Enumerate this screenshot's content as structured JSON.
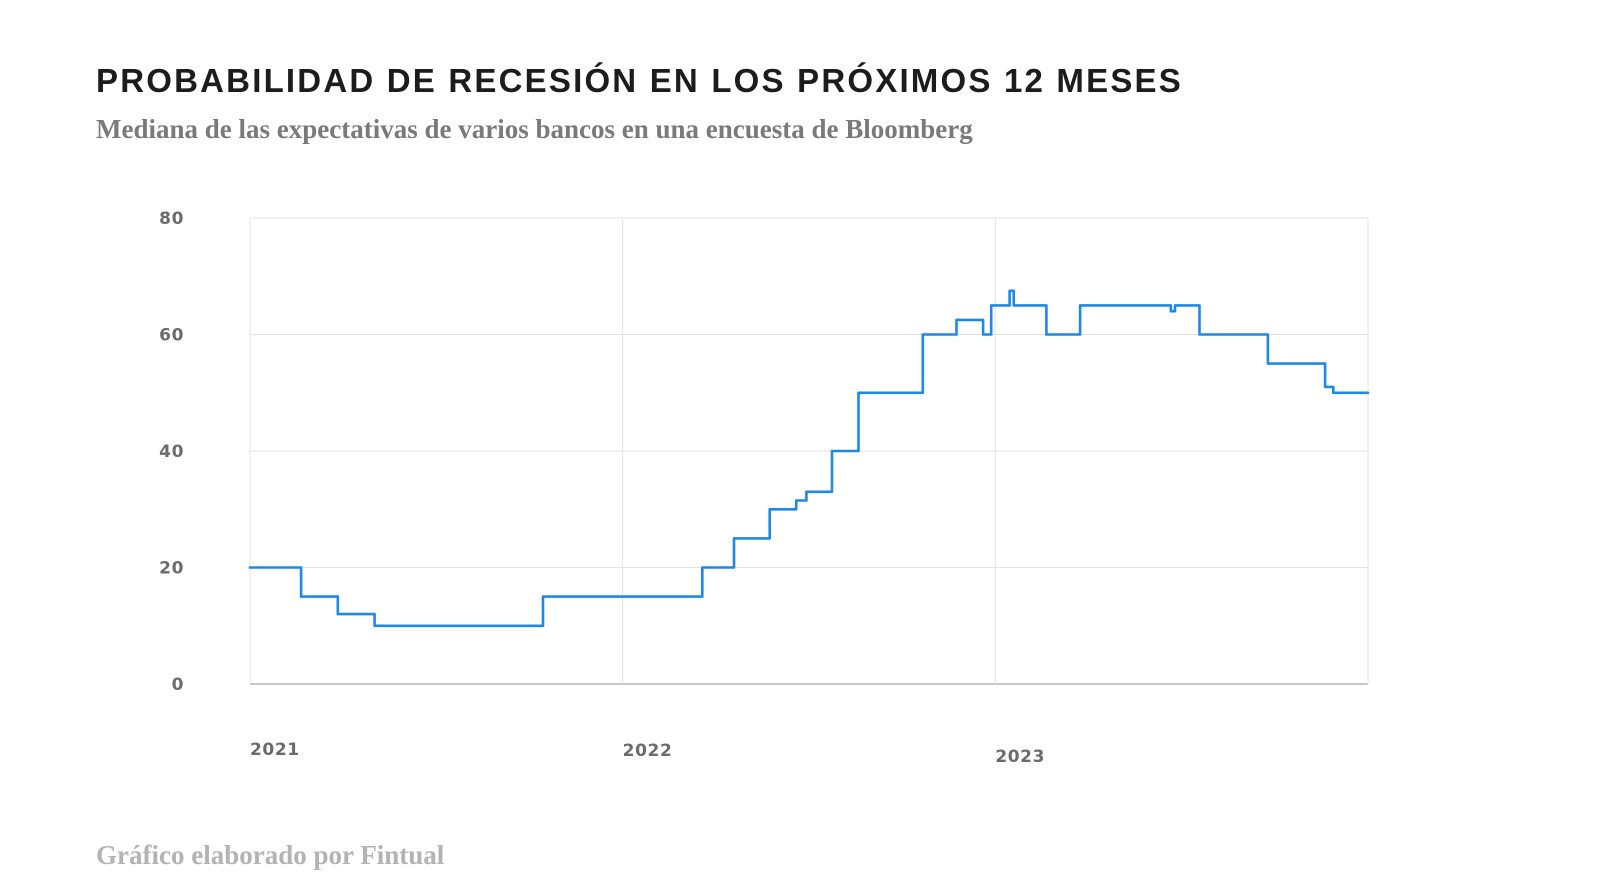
{
  "header": {
    "title": "PROBABILIDAD DE RECESIÓN EN LOS PRÓXIMOS 12 MESES",
    "subtitle": "Mediana de las expectativas de varios bancos en una encuesta de Bloomberg"
  },
  "footer": {
    "credit": "Gráfico elaborado por Fintual"
  },
  "chart_data": {
    "type": "line",
    "style": "step",
    "title": "PROBABILIDAD DE RECESIÓN EN LOS PRÓXIMOS 12 MESES",
    "subtitle": "Mediana de las expectativas de varios bancos en una encuesta de Bloomberg",
    "xlabel": "",
    "ylabel": "",
    "x_range": [
      "2021-01-01",
      "2024-01-01"
    ],
    "ylim": [
      0,
      80
    ],
    "y_ticks": [
      0,
      20,
      40,
      60,
      80
    ],
    "x_tick_labels": [
      {
        "date": "2021-01-01",
        "label": "2021"
      },
      {
        "date": "2022-01-01",
        "label": "2022"
      },
      {
        "date": "2023-01-01",
        "label": "2023"
      }
    ],
    "grid": true,
    "line_color": "#1e88e5",
    "series": [
      {
        "values": [
          {
            "x": "2021-01-01",
            "y": 20
          },
          {
            "x": "2021-02-20",
            "y": 15
          },
          {
            "x": "2021-03-28",
            "y": 12
          },
          {
            "x": "2021-05-03",
            "y": 10
          },
          {
            "x": "2021-10-15",
            "y": 15
          },
          {
            "x": "2022-03-20",
            "y": 20
          },
          {
            "x": "2022-04-20",
            "y": 25
          },
          {
            "x": "2022-05-25",
            "y": 30
          },
          {
            "x": "2022-06-20",
            "y": 31.5
          },
          {
            "x": "2022-06-30",
            "y": 33
          },
          {
            "x": "2022-07-25",
            "y": 40
          },
          {
            "x": "2022-08-20",
            "y": 50
          },
          {
            "x": "2022-10-22",
            "y": 60
          },
          {
            "x": "2022-11-24",
            "y": 62.5
          },
          {
            "x": "2022-12-20",
            "y": 60
          },
          {
            "x": "2022-12-28",
            "y": 65
          },
          {
            "x": "2023-01-15",
            "y": 67.5
          },
          {
            "x": "2023-01-19",
            "y": 65
          },
          {
            "x": "2023-02-20",
            "y": 60
          },
          {
            "x": "2023-03-25",
            "y": 65
          },
          {
            "x": "2023-06-22",
            "y": 64
          },
          {
            "x": "2023-06-26",
            "y": 65
          },
          {
            "x": "2023-07-20",
            "y": 60
          },
          {
            "x": "2023-09-25",
            "y": 55
          },
          {
            "x": "2023-11-20",
            "y": 51
          },
          {
            "x": "2023-11-28",
            "y": 50
          },
          {
            "x": "2024-01-01",
            "y": 50
          }
        ]
      }
    ]
  }
}
